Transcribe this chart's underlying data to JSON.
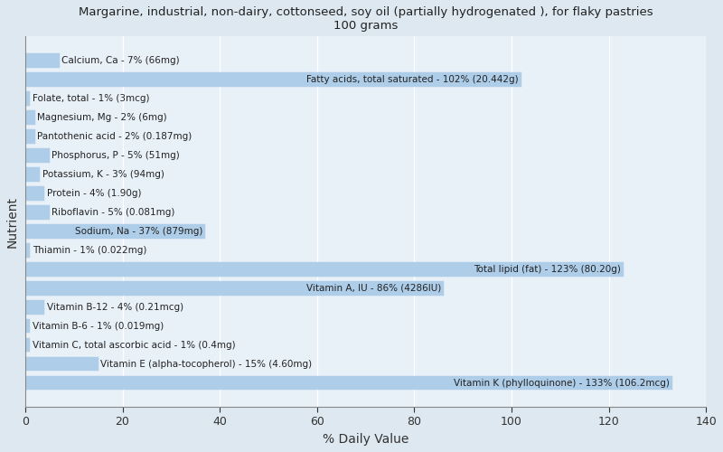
{
  "title": "Margarine, industrial, non-dairy, cottonseed, soy oil (partially hydrogenated ), for flaky pastries\n100 grams",
  "xlabel": "% Daily Value",
  "ylabel": "Nutrient",
  "xlim": [
    0,
    140
  ],
  "xticks": [
    0,
    20,
    40,
    60,
    80,
    100,
    120,
    140
  ],
  "background_color": "#dde8f0",
  "plot_bg_color": "#e8f0f8",
  "bar_color": "#aecde8",
  "bar_edge_color": "#aecde8",
  "grid_color": "#ffffff",
  "text_color": "#222222",
  "nutrients": [
    {
      "label": "Calcium, Ca - 7% (66mg)",
      "value": 7
    },
    {
      "label": "Fatty acids, total saturated - 102% (20.442g)",
      "value": 102
    },
    {
      "label": "Folate, total - 1% (3mcg)",
      "value": 1
    },
    {
      "label": "Magnesium, Mg - 2% (6mg)",
      "value": 2
    },
    {
      "label": "Pantothenic acid - 2% (0.187mg)",
      "value": 2
    },
    {
      "label": "Phosphorus, P - 5% (51mg)",
      "value": 5
    },
    {
      "label": "Potassium, K - 3% (94mg)",
      "value": 3
    },
    {
      "label": "Protein - 4% (1.90g)",
      "value": 4
    },
    {
      "label": "Riboflavin - 5% (0.081mg)",
      "value": 5
    },
    {
      "label": "Sodium, Na - 37% (879mg)",
      "value": 37
    },
    {
      "label": "Thiamin - 1% (0.022mg)",
      "value": 1
    },
    {
      "label": "Total lipid (fat) - 123% (80.20g)",
      "value": 123
    },
    {
      "label": "Vitamin A, IU - 86% (4286IU)",
      "value": 86
    },
    {
      "label": "Vitamin B-12 - 4% (0.21mcg)",
      "value": 4
    },
    {
      "label": "Vitamin B-6 - 1% (0.019mg)",
      "value": 1
    },
    {
      "label": "Vitamin C, total ascorbic acid - 1% (0.4mg)",
      "value": 1
    },
    {
      "label": "Vitamin E (alpha-tocopherol) - 15% (4.60mg)",
      "value": 15
    },
    {
      "label": "Vitamin K (phylloquinone) - 133% (106.2mcg)",
      "value": 133
    }
  ],
  "label_fontsize": 7.5,
  "title_fontsize": 9.5
}
